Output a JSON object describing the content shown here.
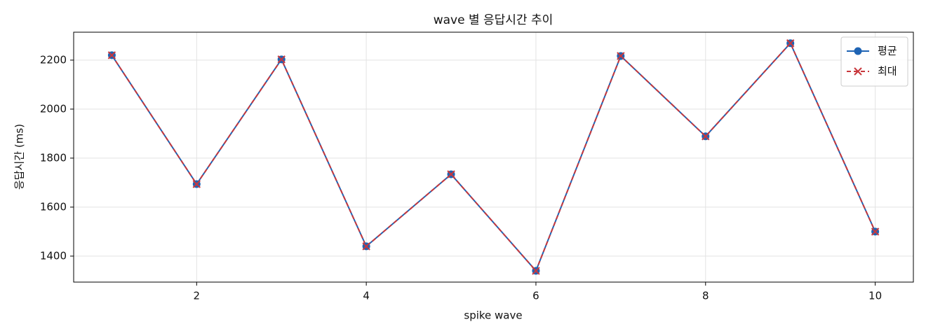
{
  "chart_data": {
    "type": "line",
    "title": "wave 별 응답시간 추이",
    "x_label": "spike wave",
    "y_label": "응답시간 (ms)",
    "x": [
      1,
      2,
      3,
      4,
      5,
      6,
      7,
      8,
      9,
      10
    ],
    "series": [
      {
        "name": "평균",
        "color": "#1f64b4",
        "marker": "o",
        "linestyle": "solid",
        "values": [
          2220,
          1694,
          2203,
          1440,
          1734,
          1340,
          2217,
          1889,
          2269,
          1500
        ]
      },
      {
        "name": "최대",
        "color": "#c8373c",
        "marker": "x",
        "linestyle": "dashed",
        "values": [
          2220,
          1694,
          2203,
          1440,
          1734,
          1340,
          2217,
          1889,
          2269,
          1500
        ]
      }
    ],
    "xlim": [
      0.55,
      10.45
    ],
    "ylim": [
      1294,
      2314
    ],
    "xticks": [
      2,
      4,
      6,
      8,
      10
    ],
    "yticks": [
      1400,
      1600,
      1800,
      2000,
      2200
    ],
    "grid": true,
    "legend": "upper right"
  }
}
